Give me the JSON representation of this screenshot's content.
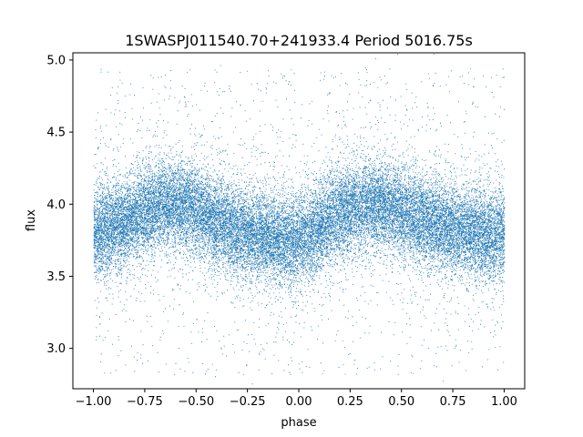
{
  "chart_data": {
    "type": "scatter",
    "title": "1SWASPJ011540.70+241933.4 Period 5016.75s",
    "xlabel": "phase",
    "ylabel": "flux",
    "xlim": [
      -1.1,
      1.1
    ],
    "ylim": [
      2.72,
      5.05
    ],
    "x_ticks": [
      -1.0,
      -0.75,
      -0.5,
      -0.25,
      0.0,
      0.25,
      0.5,
      0.75,
      1.0
    ],
    "x_tick_labels": [
      "−1.00",
      "−0.75",
      "−0.50",
      "−0.25",
      "0.00",
      "0.25",
      "0.50",
      "0.75",
      "1.00"
    ],
    "y_ticks": [
      3.0,
      3.5,
      4.0,
      4.5,
      5.0
    ],
    "y_tick_labels": [
      "3.0",
      "3.5",
      "4.0",
      "4.5",
      "5.0"
    ],
    "grid": false,
    "marker_color": "#1f77b4",
    "series": [
      {
        "phase": [
          -1.0,
          -0.95,
          -0.9,
          -0.85,
          -0.8,
          -0.75,
          -0.7,
          -0.65,
          -0.6,
          -0.55,
          -0.5,
          -0.45,
          -0.4,
          -0.35,
          -0.3,
          -0.25,
          -0.2,
          -0.15,
          -0.1,
          -0.05,
          0.0,
          0.05,
          0.1,
          0.15,
          0.2,
          0.25,
          0.3,
          0.35,
          0.4,
          0.45,
          0.5,
          0.55,
          0.6,
          0.65,
          0.7,
          0.75,
          0.8,
          0.85,
          0.9,
          0.95,
          1.0
        ],
        "flux_center": [
          3.8,
          3.82,
          3.84,
          3.87,
          3.91,
          3.95,
          3.98,
          4.0,
          4.0,
          3.99,
          3.96,
          3.92,
          3.88,
          3.85,
          3.82,
          3.8,
          3.78,
          3.77,
          3.76,
          3.76,
          3.77,
          3.8,
          3.84,
          3.89,
          3.94,
          3.97,
          3.99,
          4.0,
          4.0,
          3.98,
          3.95,
          3.92,
          3.89,
          3.87,
          3.85,
          3.83,
          3.81,
          3.8,
          3.79,
          3.79,
          3.8
        ],
        "flux_spread": 0.15,
        "point_count": 26000,
        "outlier_count": 3500,
        "flux_outlier_range": [
          2.82,
          4.95
        ]
      }
    ]
  }
}
